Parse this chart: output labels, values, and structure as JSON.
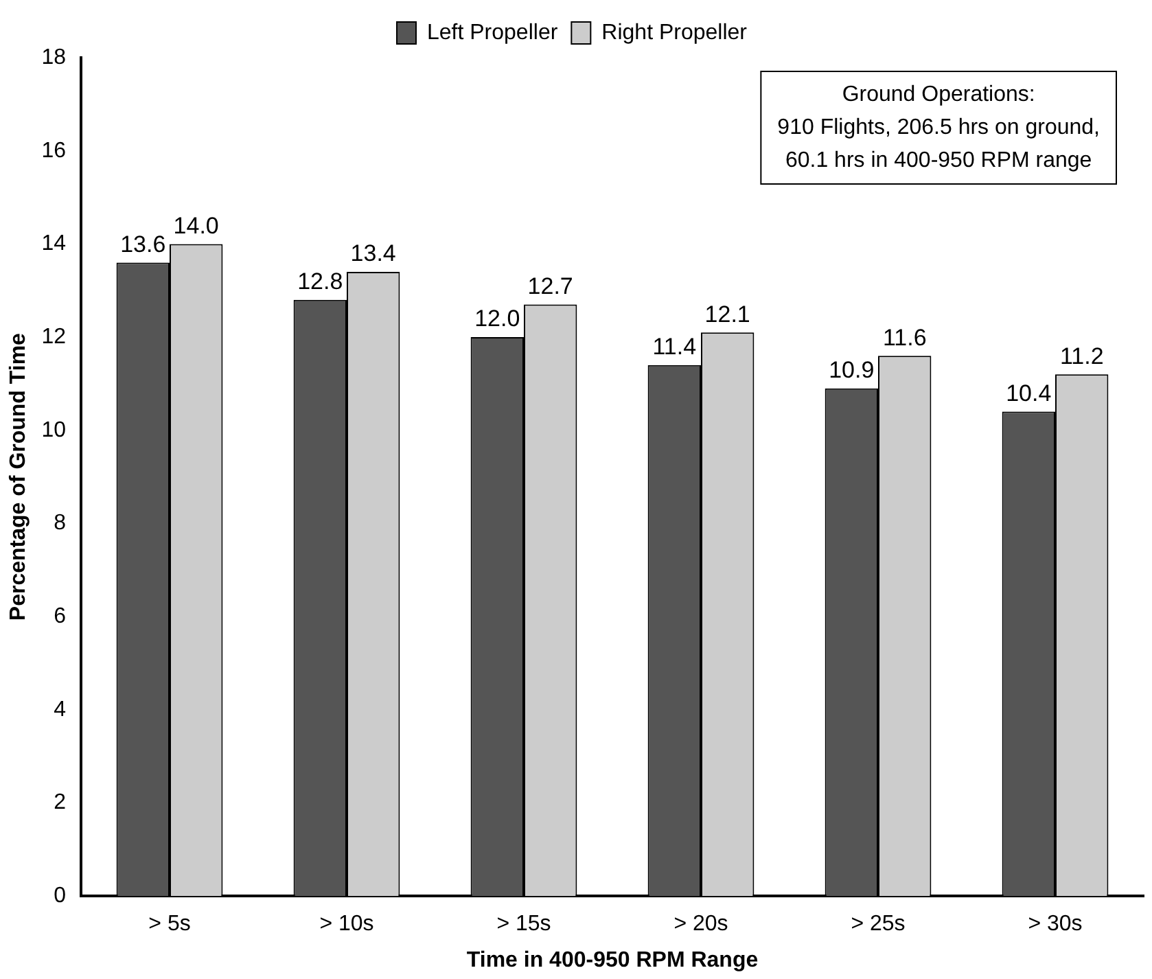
{
  "chart_data": {
    "type": "bar",
    "xlabel": "Time in 400-950 RPM Range",
    "ylabel": "Percentage of Ground Time",
    "categories": [
      "> 5s",
      "> 10s",
      "> 15s",
      "> 20s",
      "> 25s",
      "> 30s"
    ],
    "series": [
      {
        "name": "Left Propeller",
        "color": "#555555",
        "values": [
          13.6,
          12.8,
          12.0,
          11.4,
          10.9,
          10.4
        ],
        "value_labels": [
          "13.6",
          "12.8",
          "12.0",
          "11.4",
          "10.9",
          "10.4"
        ]
      },
      {
        "name": "Right Propeller",
        "color": "#cccccc",
        "values": [
          14.0,
          13.4,
          12.7,
          12.1,
          11.6,
          11.2
        ],
        "value_labels": [
          "14.0",
          "13.4",
          "12.7",
          "12.1",
          "11.6",
          "11.2"
        ]
      }
    ],
    "ylim": [
      0,
      18
    ],
    "yticks": [
      0,
      2,
      4,
      6,
      8,
      10,
      12,
      14,
      16,
      18
    ],
    "grid": false,
    "legend": "top",
    "annotations": [
      "Ground Operations:\n910 Flights, 206.5 hrs on ground,\n60.1 hrs in 400-950 RPM range"
    ]
  }
}
